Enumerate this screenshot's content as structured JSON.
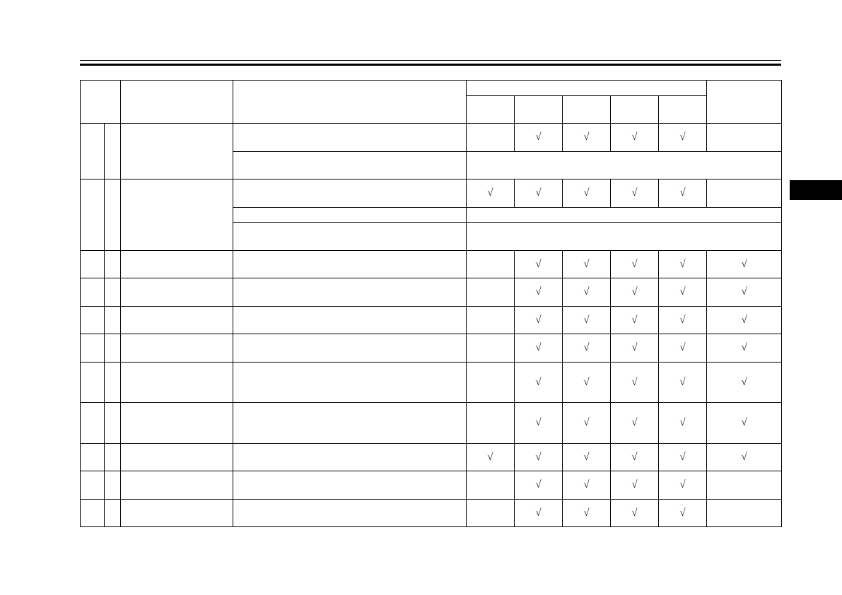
{
  "check_symbol": "√",
  "colors": {
    "lines": "#000000",
    "tab": "#000000"
  },
  "table": {
    "groups": [
      {
        "rows": [
          {
            "checks": [
              false,
              true,
              true,
              true,
              true,
              false
            ]
          },
          {
            "merged": true
          }
        ]
      },
      {
        "rows": [
          {
            "checks": [
              true,
              true,
              true,
              true,
              true,
              false
            ]
          },
          {
            "merged": true
          },
          {
            "merged": true
          }
        ]
      },
      {
        "rows": [
          {
            "checks": [
              false,
              true,
              true,
              true,
              true,
              true
            ]
          }
        ]
      },
      {
        "rows": [
          {
            "checks": [
              false,
              true,
              true,
              true,
              true,
              true
            ]
          }
        ]
      },
      {
        "rows": [
          {
            "checks": [
              false,
              true,
              true,
              true,
              true,
              true
            ]
          }
        ]
      },
      {
        "rows": [
          {
            "checks": [
              false,
              true,
              true,
              true,
              true,
              true
            ]
          }
        ]
      },
      {
        "rows": [
          {
            "checks": [
              false,
              true,
              true,
              true,
              true,
              true
            ]
          }
        ]
      },
      {
        "rows": [
          {
            "checks": [
              false,
              true,
              true,
              true,
              true,
              true
            ]
          }
        ]
      },
      {
        "rows": [
          {
            "checks": [
              true,
              true,
              true,
              true,
              true,
              true
            ]
          }
        ]
      },
      {
        "rows": [
          {
            "checks": [
              false,
              true,
              true,
              true,
              true,
              false
            ]
          }
        ]
      },
      {
        "rows": [
          {
            "checks": [
              false,
              true,
              true,
              true,
              true,
              false
            ]
          }
        ]
      }
    ]
  }
}
